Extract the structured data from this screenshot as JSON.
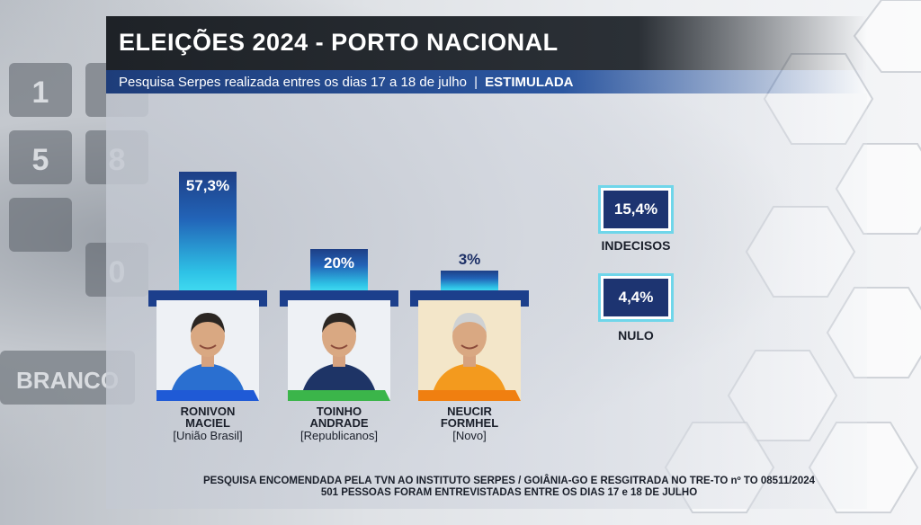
{
  "header": {
    "title": "ELEIÇÕES 2024 - PORTO NACIONAL",
    "subtitle": "Pesquisa Serpes realizada entres os dias 17 a 18 de julho",
    "subtitle_separator": "|",
    "subtitle_tag": "ESTIMULADA"
  },
  "colors": {
    "bar_top": "#1e3f86",
    "bar_bottom": "#3fd9f0",
    "card_frame": "#1c3f8c",
    "box_fill": "#1d3471",
    "box_border": "#6fd6ea"
  },
  "chart_data": {
    "type": "bar",
    "categories": [
      "RONIVON MACIEL",
      "TOINHO ANDRADE",
      "NEUCIR FORMHEL"
    ],
    "values": [
      57.3,
      20,
      3
    ],
    "value_labels": [
      "57,3%",
      "20%",
      "3%"
    ],
    "unit": "%",
    "ylim": [
      0,
      60
    ],
    "grid": false,
    "legend": "none"
  },
  "candidates": [
    {
      "first_name": "RONIVON",
      "last_name": "MACIEL",
      "party": "[União Brasil]",
      "value_label": "57,3%",
      "shirt_color": "#2a6fd0",
      "stripe_color": "#1f5ad6"
    },
    {
      "first_name": "TOINHO",
      "last_name": "ANDRADE",
      "party": "[Republicanos]",
      "value_label": "20%",
      "shirt_color": "#1e3466",
      "stripe_color": "#3bb54a"
    },
    {
      "first_name": "NEUCIR",
      "last_name": "FORMHEL",
      "party": "[Novo]",
      "value_label": "3%",
      "shirt_color": "#f39a1e",
      "stripe_color": "#f07f10"
    }
  ],
  "side_stats": [
    {
      "value_label": "15,4%",
      "label": "INDECISOS"
    },
    {
      "value_label": "4,4%",
      "label": "NULO"
    }
  ],
  "footer": {
    "line1": "PESQUISA ENCOMENDADA PELA TVN AO INSTITUTO SERPES / GOIÂNIA-GO E  RESGITRADA NO TRE-TO nº TO 08511/2024",
    "line2": "501 PESSOAS FORAM ENTREVISTADAS ENTRE OS DIAS 17 e 18 DE JULHO"
  },
  "background": {
    "keypad_digits": [
      "1",
      "5",
      "8",
      "0"
    ],
    "keypad_word": "BRANCO"
  }
}
